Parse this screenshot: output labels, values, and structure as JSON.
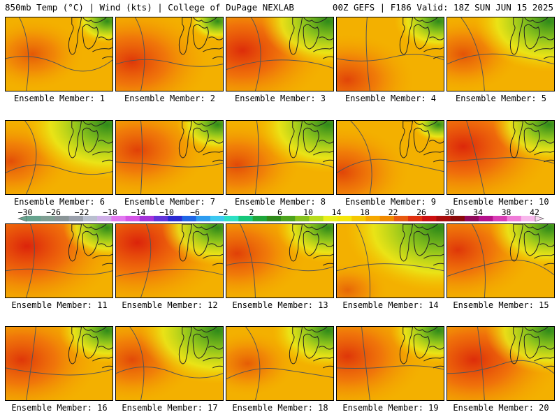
{
  "header": {
    "left": "850mb Temp (°C) | Wind (kts) | College of DuPage NEXLAB",
    "right": "00Z GEFS | F186 Valid: 18Z SUN JUN 15 2025"
  },
  "panel_label_prefix": "Ensemble Member: ",
  "members": [
    {
      "id": "1",
      "hot": 0.25,
      "cool": 0.15,
      "hx": 0.25,
      "hy": 0.5
    },
    {
      "id": "2",
      "hot": 0.6,
      "cool": 0.1,
      "hx": 0.15,
      "hy": 0.6
    },
    {
      "id": "3",
      "hot": 0.7,
      "cool": 0.6,
      "hx": 0.15,
      "hy": 0.45
    },
    {
      "id": "4",
      "hot": 0.45,
      "cool": 0.3,
      "hx": 0.1,
      "hy": 0.85
    },
    {
      "id": "5",
      "hot": 0.3,
      "cool": 0.7,
      "hx": 0.15,
      "hy": 0.5
    },
    {
      "id": "6",
      "hot": 0.35,
      "cool": 0.8,
      "hx": 0.05,
      "hy": 0.55
    },
    {
      "id": "7",
      "hot": 0.5,
      "cool": 0.25,
      "hx": 0.2,
      "hy": 0.4
    },
    {
      "id": "8",
      "hot": 0.4,
      "cool": 0.65,
      "hx": 0.1,
      "hy": 0.6
    },
    {
      "id": "9",
      "hot": 0.45,
      "cool": 0.05,
      "hx": 0.05,
      "hy": 0.7
    },
    {
      "id": "10",
      "hot": 0.75,
      "cool": 0.45,
      "hx": 0.15,
      "hy": 0.35
    },
    {
      "id": "11",
      "hot": 0.8,
      "cool": 0.3,
      "hx": 0.2,
      "hy": 0.3
    },
    {
      "id": "12",
      "hot": 0.8,
      "cool": 0.45,
      "hx": 0.2,
      "hy": 0.25
    },
    {
      "id": "13",
      "hot": 0.5,
      "cool": 0.4,
      "hx": 0.1,
      "hy": 0.4
    },
    {
      "id": "14",
      "hot": 0.1,
      "cool": 0.95,
      "hx": 0.1,
      "hy": 0.9
    },
    {
      "id": "15",
      "hot": 0.6,
      "cool": 0.5,
      "hx": 0.1,
      "hy": 0.35
    },
    {
      "id": "16",
      "hot": 0.6,
      "cool": 0.35,
      "hx": 0.15,
      "hy": 0.45
    },
    {
      "id": "17",
      "hot": 0.4,
      "cool": 0.75,
      "hx": 0.15,
      "hy": 0.45
    },
    {
      "id": "18",
      "hot": 0.2,
      "cool": 0.45,
      "hx": 0.2,
      "hy": 0.5
    },
    {
      "id": "19",
      "hot": 0.6,
      "cool": 0.35,
      "hx": 0.1,
      "hy": 0.4
    },
    {
      "id": "20",
      "hot": 0.7,
      "cool": 0.55,
      "hx": 0.25,
      "hy": 0.45
    }
  ],
  "colorbar": {
    "tick_labels": [
      "−30",
      "−26",
      "−22",
      "−18",
      "−14",
      "−10",
      "−6",
      "−2",
      "2",
      "6",
      "10",
      "14",
      "18",
      "22",
      "26",
      "30",
      "34",
      "38",
      "42"
    ],
    "colors": [
      "#66a38e",
      "#7f9f93",
      "#8a9597",
      "#9aa0ac",
      "#b9bfcf",
      "#cfb0e8",
      "#e278f0",
      "#d455e6",
      "#a433d9",
      "#6233d9",
      "#2a2ad1",
      "#1f66e6",
      "#2e9cf0",
      "#3cc8f0",
      "#2de0c4",
      "#16c77a",
      "#1ea63a",
      "#2f8a1a",
      "#4da31c",
      "#86c21c",
      "#b8dc1c",
      "#e8f01c",
      "#f5e60a",
      "#f5c800",
      "#f5a800",
      "#f08a00",
      "#e85a10",
      "#e03010",
      "#cc1010",
      "#a80c0c",
      "#8a0a0a",
      "#90085a",
      "#b4108a",
      "#d83cb4",
      "#f07cd8",
      "#f8b8ec"
    ]
  }
}
